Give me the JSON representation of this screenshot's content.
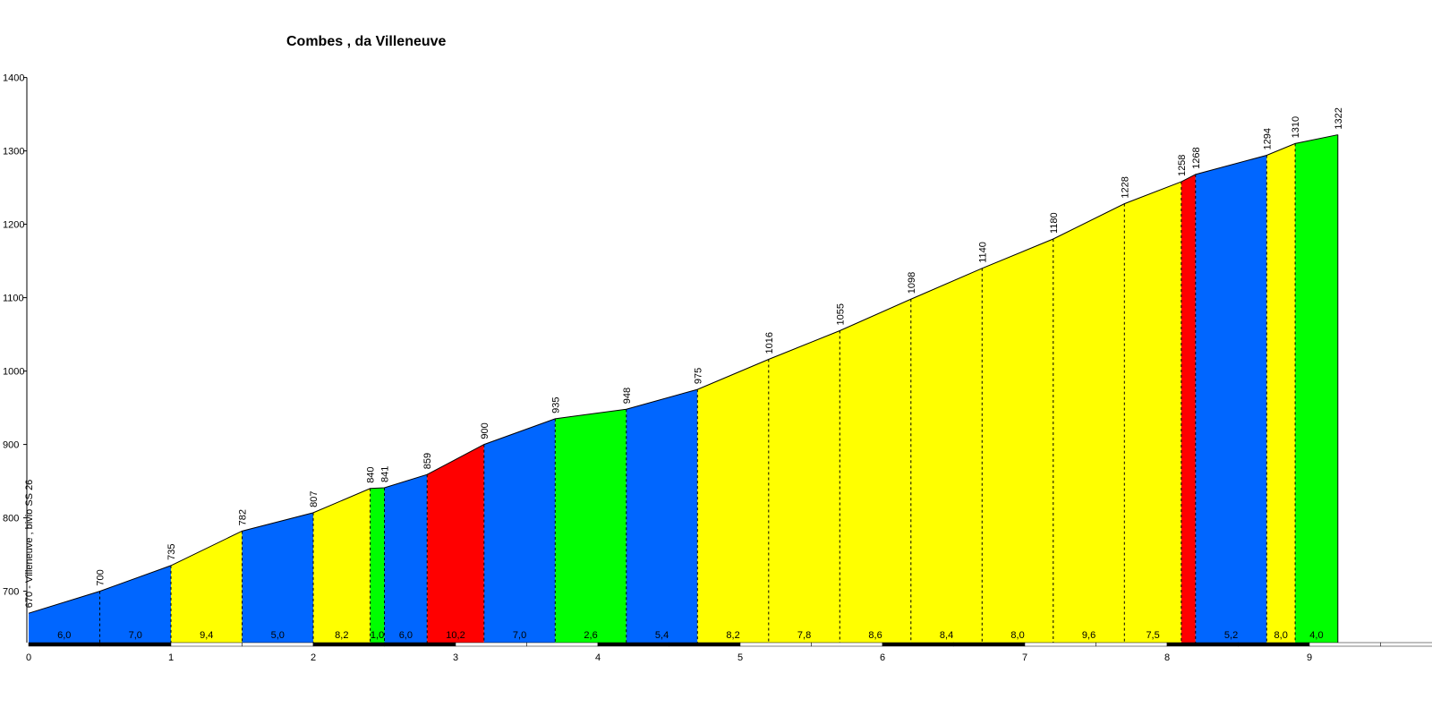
{
  "chart_data": {
    "type": "area",
    "title": "Combes , da Villeneuve",
    "start_label": "670 - Villeneuve , bivio SS 26",
    "xlim": [
      0,
      9.6
    ],
    "ylim": [
      640,
      1400
    ],
    "x_ticks": [
      0,
      1,
      2,
      3,
      4,
      5,
      6,
      7,
      8,
      9
    ],
    "y_ticks": [
      700,
      800,
      900,
      1000,
      1100,
      1200,
      1300,
      1400
    ],
    "grid": false,
    "legend": "none",
    "points": [
      {
        "x": 0,
        "y": 670,
        "label": "670 - Villeneuve , bivio SS 26"
      },
      {
        "x": 0.5,
        "y": 700,
        "label": "700"
      },
      {
        "x": 1.0,
        "y": 735,
        "label": "735"
      },
      {
        "x": 1.5,
        "y": 782,
        "label": "782"
      },
      {
        "x": 2.0,
        "y": 807,
        "label": "807"
      },
      {
        "x": 2.4,
        "y": 840,
        "label": "840"
      },
      {
        "x": 2.5,
        "y": 841,
        "label": "841"
      },
      {
        "x": 2.8,
        "y": 859,
        "label": "859"
      },
      {
        "x": 3.2,
        "y": 900,
        "label": "900"
      },
      {
        "x": 3.7,
        "y": 935,
        "label": "935"
      },
      {
        "x": 4.2,
        "y": 948,
        "label": "948"
      },
      {
        "x": 4.7,
        "y": 975,
        "label": "975"
      },
      {
        "x": 5.2,
        "y": 1016,
        "label": "1016"
      },
      {
        "x": 5.7,
        "y": 1055,
        "label": "1055"
      },
      {
        "x": 6.2,
        "y": 1098,
        "label": "1098"
      },
      {
        "x": 6.7,
        "y": 1140,
        "label": "1140"
      },
      {
        "x": 7.2,
        "y": 1180,
        "label": "1180"
      },
      {
        "x": 7.7,
        "y": 1228,
        "label": "1228"
      },
      {
        "x": 8.1,
        "y": 1258,
        "label": "1258"
      },
      {
        "x": 8.2,
        "y": 1268,
        "label": "1268"
      },
      {
        "x": 8.7,
        "y": 1294,
        "label": "1294"
      },
      {
        "x": 8.9,
        "y": 1310,
        "label": "1310"
      },
      {
        "x": 9.2,
        "y": 1322,
        "label": "1322"
      }
    ],
    "segments": [
      {
        "gradient": "6,0",
        "color": "#0066ff"
      },
      {
        "gradient": "7,0",
        "color": "#0066ff"
      },
      {
        "gradient": "9,4",
        "color": "#ffff00"
      },
      {
        "gradient": "5,0",
        "color": "#0066ff"
      },
      {
        "gradient": "8,2",
        "color": "#ffff00"
      },
      {
        "gradient": "1,0",
        "color": "#00ff00"
      },
      {
        "gradient": "6,0",
        "color": "#0066ff"
      },
      {
        "gradient": "10,2",
        "color": "#ff0000"
      },
      {
        "gradient": "7,0",
        "color": "#0066ff"
      },
      {
        "gradient": "2,6",
        "color": "#00ff00"
      },
      {
        "gradient": "5,4",
        "color": "#0066ff"
      },
      {
        "gradient": "8,2",
        "color": "#ffff00"
      },
      {
        "gradient": "7,8",
        "color": "#ffff00"
      },
      {
        "gradient": "8,6",
        "color": "#ffff00"
      },
      {
        "gradient": "8,4",
        "color": "#ffff00"
      },
      {
        "gradient": "8,0",
        "color": "#ffff00"
      },
      {
        "gradient": "9,6",
        "color": "#ffff00"
      },
      {
        "gradient": "7,5",
        "color": "#ffff00"
      },
      {
        "gradient": "",
        "color": "#ff0000"
      },
      {
        "gradient": "5,2",
        "color": "#0066ff"
      },
      {
        "gradient": "8,0",
        "color": "#ffff00"
      },
      {
        "gradient": "4,0",
        "color": "#00ff00"
      }
    ]
  }
}
